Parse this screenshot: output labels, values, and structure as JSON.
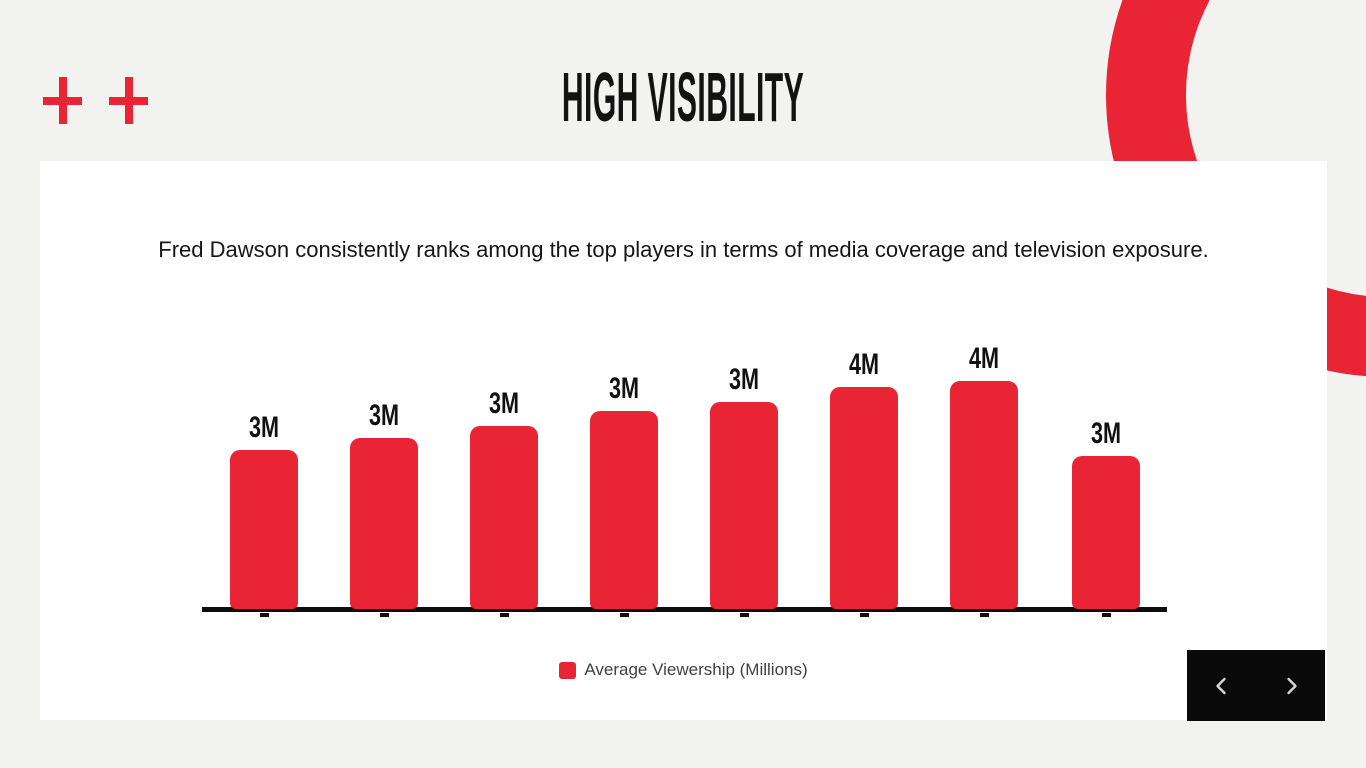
{
  "slide": {
    "background_color": "#f2f2f1",
    "accent_color": "#e82435",
    "title": "HIGH VISIBILITY",
    "description": "Fred Dawson consistently ranks among the top players in terms of media coverage and television exposure."
  },
  "chart_data": {
    "type": "bar",
    "title": "",
    "xlabel": "",
    "ylabel": "",
    "series": [
      {
        "name": "Average Viewership (Millions)",
        "labels": [
          "3M",
          "3M",
          "3M",
          "3M",
          "3M",
          "4M",
          "4M",
          "3M"
        ],
        "values": [
          2.65,
          2.85,
          3.05,
          3.3,
          3.45,
          3.7,
          3.8,
          2.55
        ]
      }
    ],
    "x_tick_labels": [
      "",
      "",
      "",
      "",
      "",
      "",
      "",
      ""
    ],
    "ylim": [
      0,
      4.5
    ],
    "grid": false,
    "bar_color": "#e82435",
    "axis_color": "#0d0d0d",
    "legend": {
      "position": "bottom-center",
      "entries": [
        {
          "label": "Average Viewership (Millions)",
          "color": "#e82435"
        }
      ]
    }
  },
  "navigation": {
    "background_color": "#0a0a0a",
    "prev_icon": "chevron-left",
    "next_icon": "chevron-right",
    "icon_color": "#d6d6d6"
  },
  "decorations": {
    "plus_icons": {
      "count": 2,
      "color": "#e82435"
    },
    "ring": {
      "color": "#e82435"
    }
  }
}
